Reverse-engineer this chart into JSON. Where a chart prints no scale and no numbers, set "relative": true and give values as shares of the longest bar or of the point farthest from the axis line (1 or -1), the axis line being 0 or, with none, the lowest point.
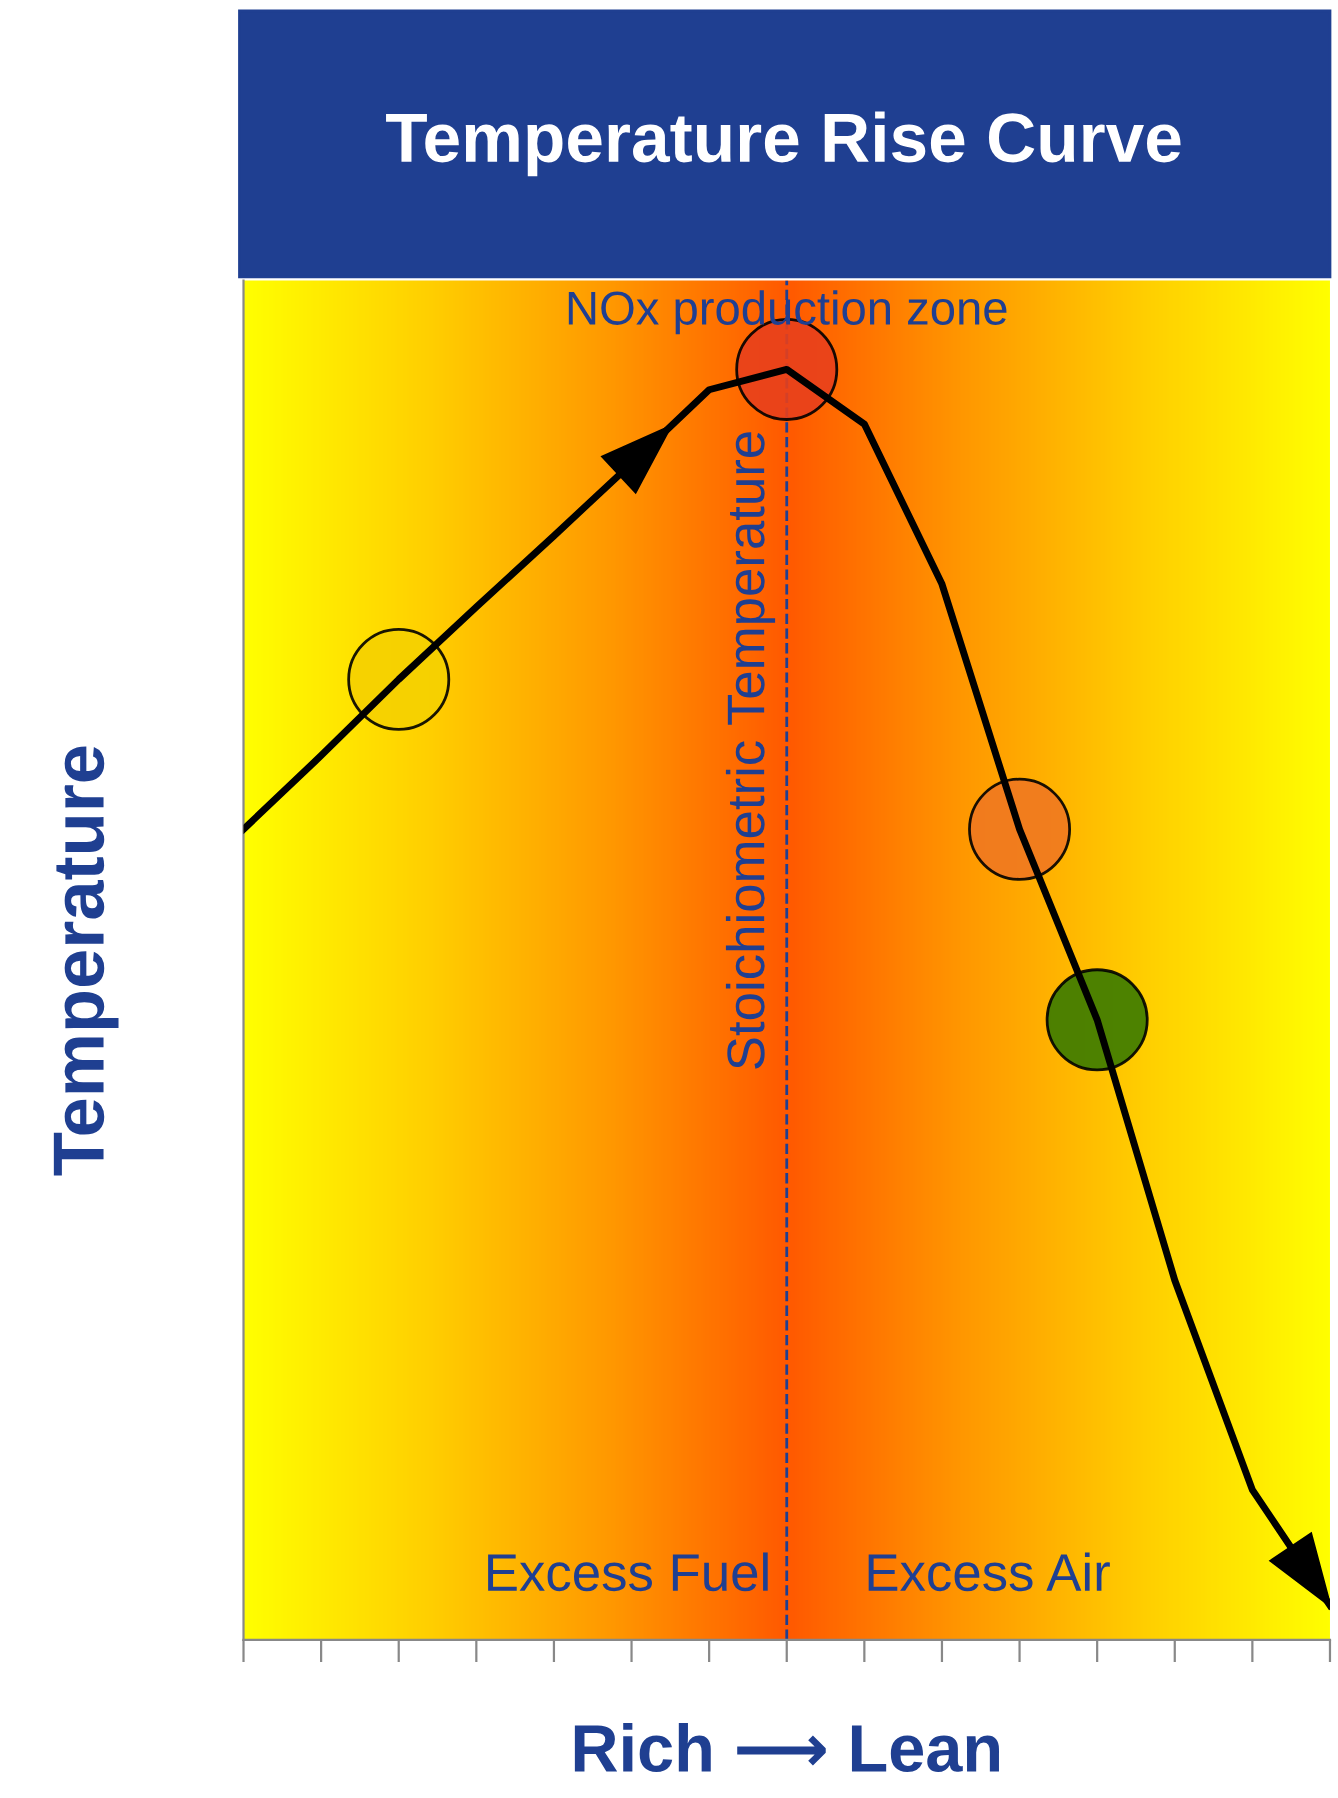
{
  "chart_data": {
    "type": "line",
    "title": "Temperature Rise Curve",
    "xlabel": "Rich ⟶ Lean",
    "ylabel": "Temperature",
    "relative": true,
    "tick_labels": false,
    "grid": false,
    "legend": false,
    "categories": [
      null,
      null,
      null,
      null,
      null,
      null,
      null,
      null,
      null,
      null,
      null,
      null,
      null,
      null,
      null
    ],
    "series": [
      {
        "color": "#000000",
        "line_style": "solid",
        "values": [
          0.638,
          0.696,
          0.756,
          0.813,
          0.869,
          0.926,
          0.984,
          1,
          0.957,
          0.831,
          0.638,
          0.488,
          0.283,
          0.118,
          0.027
        ]
      }
    ],
    "annotations": [
      "NOx production zone",
      "Excess Fuel",
      "Excess Air",
      "Stoichiometric Temperature"
    ]
  }
}
